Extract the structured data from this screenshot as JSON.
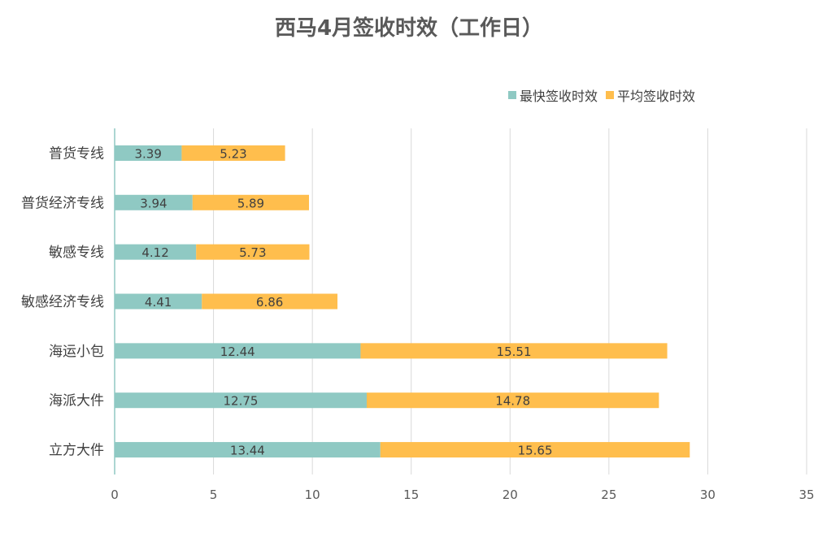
{
  "chart_data": {
    "type": "bar",
    "orientation": "horizontal",
    "stacked": true,
    "title": "西马4月签收时效（工作日）",
    "categories": [
      "普货专线",
      "普货经济专线",
      "敏感专线",
      "敏感经济专线",
      "海运小包",
      "海派大件",
      "立方大件"
    ],
    "series": [
      {
        "name": "最快签收时效",
        "color": "#8FC9C3",
        "values": [
          3.39,
          3.94,
          4.12,
          4.41,
          12.44,
          12.75,
          13.44
        ]
      },
      {
        "name": "平均签收时效",
        "color": "#FFBE4D",
        "values": [
          5.23,
          5.89,
          5.73,
          6.86,
          15.51,
          14.78,
          15.65
        ]
      }
    ],
    "xlim": [
      0,
      35
    ],
    "xticks": [
      0,
      5,
      10,
      15,
      20,
      25,
      30,
      35
    ],
    "legend_position": "top-right",
    "grid": "vertical"
  }
}
